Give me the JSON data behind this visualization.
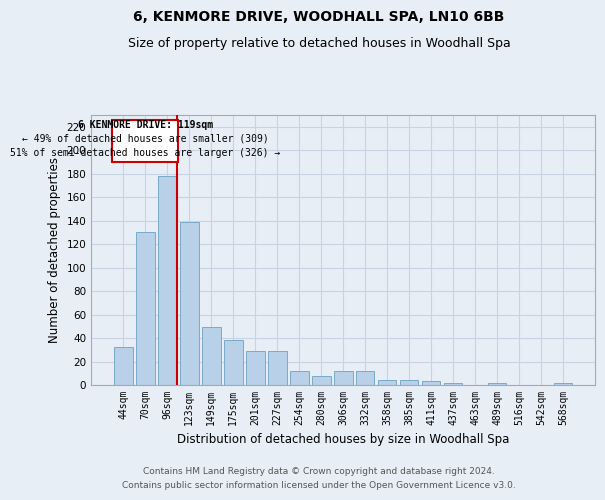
{
  "title": "6, KENMORE DRIVE, WOODHALL SPA, LN10 6BB",
  "subtitle": "Size of property relative to detached houses in Woodhall Spa",
  "xlabel": "Distribution of detached houses by size in Woodhall Spa",
  "ylabel": "Number of detached properties",
  "footnote1": "Contains HM Land Registry data © Crown copyright and database right 2024.",
  "footnote2": "Contains public sector information licensed under the Open Government Licence v3.0.",
  "bar_labels": [
    "44sqm",
    "70sqm",
    "96sqm",
    "123sqm",
    "149sqm",
    "175sqm",
    "201sqm",
    "227sqm",
    "254sqm",
    "280sqm",
    "306sqm",
    "332sqm",
    "358sqm",
    "385sqm",
    "411sqm",
    "437sqm",
    "463sqm",
    "489sqm",
    "516sqm",
    "542sqm",
    "568sqm"
  ],
  "bar_values": [
    32,
    130,
    178,
    139,
    49,
    38,
    29,
    29,
    12,
    8,
    12,
    12,
    4,
    4,
    3,
    2,
    0,
    2,
    0,
    0,
    2
  ],
  "bar_color": "#b8d0e8",
  "bar_edge_color": "#7aaac8",
  "grid_color": "#c8d4e4",
  "bg_color": "#e8eef6",
  "annotation_box_color": "#ffffff",
  "annotation_border_color": "#cc0000",
  "annotation_text_line1": "6 KENMORE DRIVE: 119sqm",
  "annotation_text_line2": "← 49% of detached houses are smaller (309)",
  "annotation_text_line3": "51% of semi-detached houses are larger (326) →",
  "ylim": [
    0,
    230
  ],
  "yticks": [
    0,
    20,
    40,
    60,
    80,
    100,
    120,
    140,
    160,
    180,
    200,
    220
  ],
  "title_fontsize": 10,
  "subtitle_fontsize": 9,
  "xlabel_fontsize": 8.5,
  "ylabel_fontsize": 8.5,
  "footnote_fontsize": 6.5
}
